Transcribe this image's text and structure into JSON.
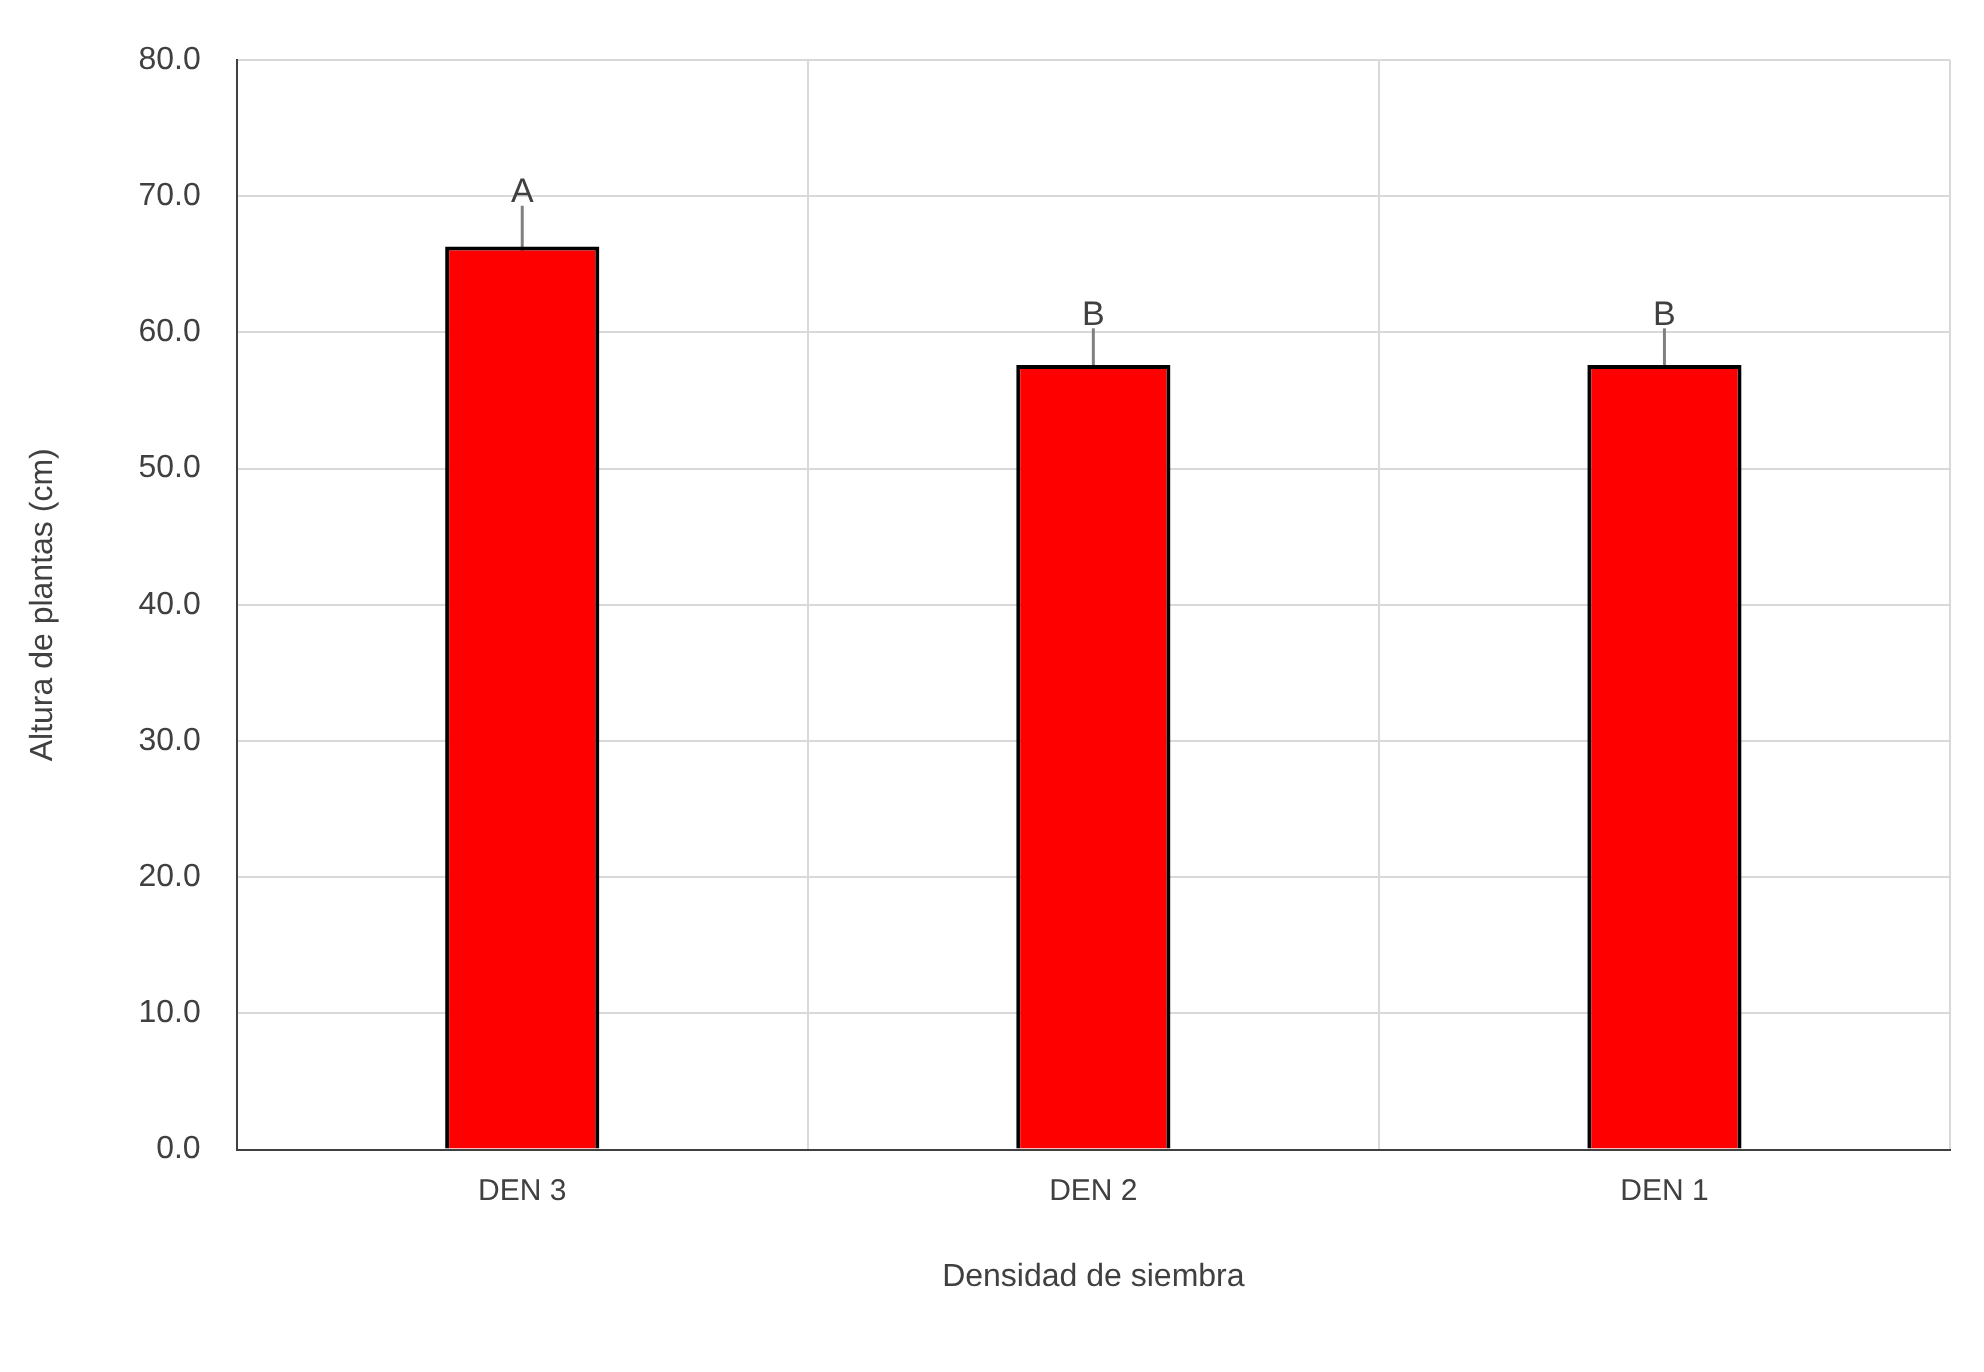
{
  "chart_data": {
    "type": "bar",
    "xlabel": "Densidad de siembra",
    "ylabel": "Altura de plantas (cm)",
    "categories": [
      "DEN 3",
      "DEN 2",
      "DEN 1"
    ],
    "values": [
      66.3,
      57.6,
      57.6
    ],
    "errors": [
      3.0,
      2.7,
      2.7
    ],
    "color": "#ff0000",
    "ylim": [
      0,
      80
    ],
    "yticks": [
      {
        "value": 0,
        "label": "0.0"
      },
      {
        "value": 10,
        "label": "10.0"
      },
      {
        "value": 20,
        "label": "20.0"
      },
      {
        "value": 30,
        "label": "30.0"
      },
      {
        "value": 40,
        "label": "40.0"
      },
      {
        "value": 50,
        "label": "50.0"
      },
      {
        "value": 60,
        "label": "60.0"
      },
      {
        "value": 70,
        "label": "70.0"
      },
      {
        "value": 80,
        "label": "80.0"
      }
    ],
    "grid": true,
    "legend": false,
    "annotations": [
      {
        "text": "A",
        "x": "DEN 3",
        "y": 69.3
      },
      {
        "text": "B",
        "x": "DEN 2",
        "y": 60.3
      },
      {
        "text": "B",
        "x": "DEN 1",
        "y": 60.3
      }
    ]
  }
}
